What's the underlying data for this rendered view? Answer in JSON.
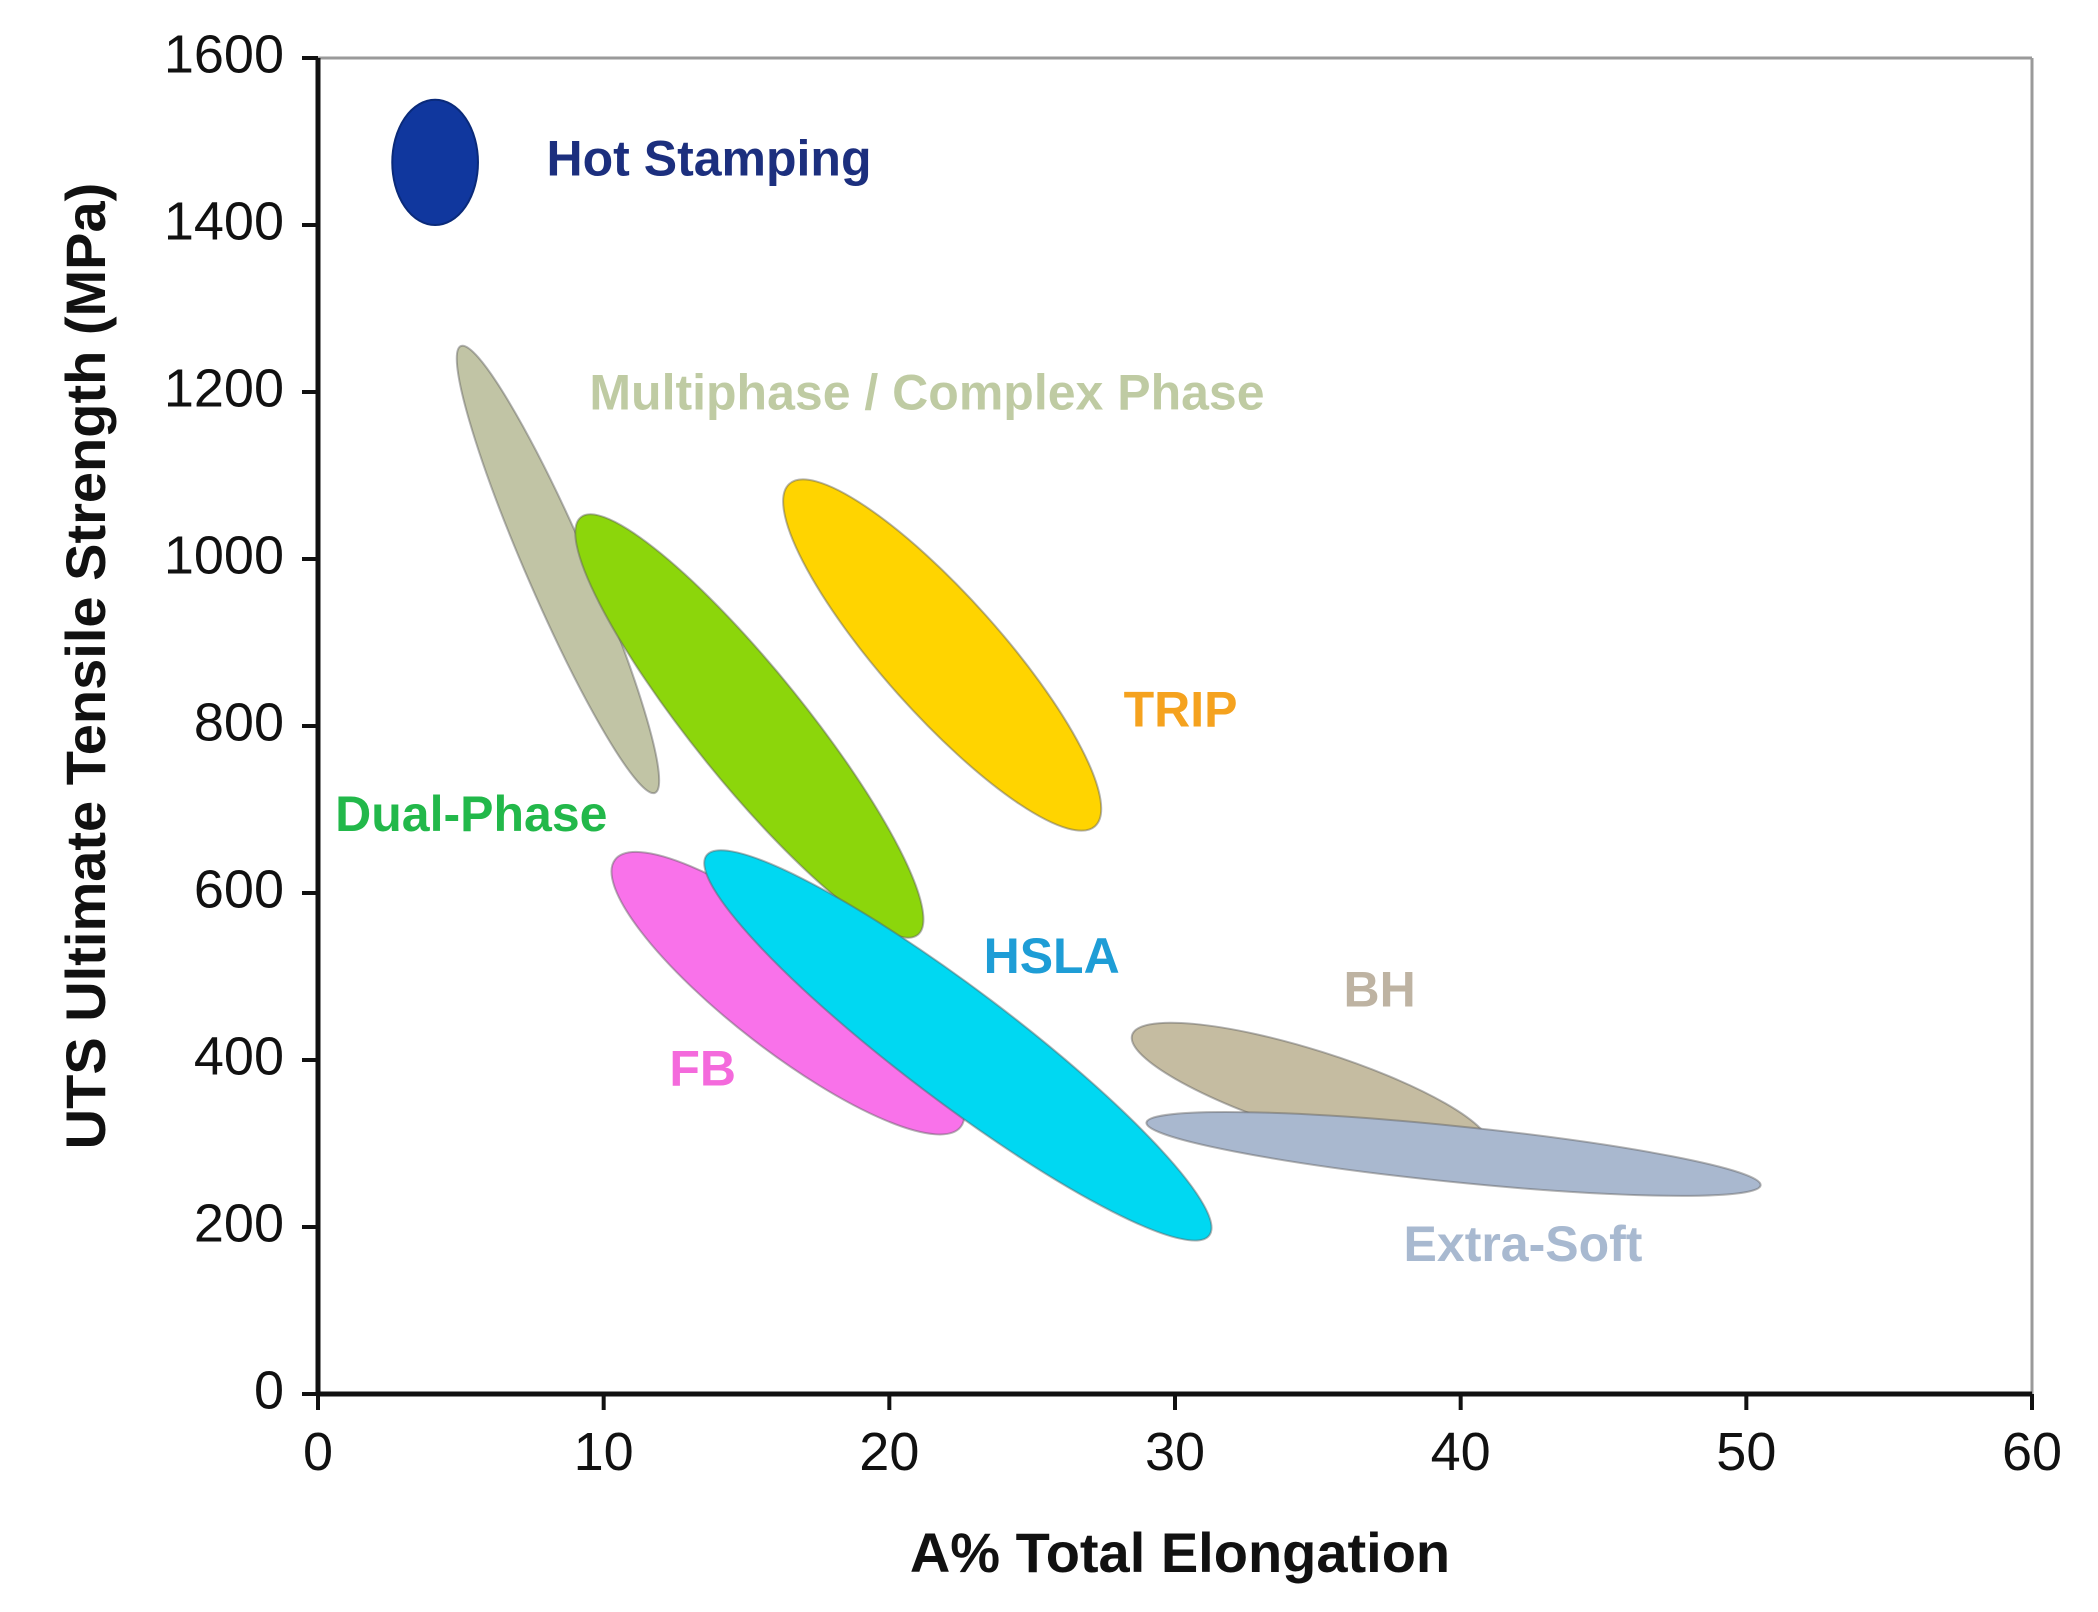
{
  "chart_data": {
    "type": "scatter",
    "subtype": "property-region ellipses",
    "title": "",
    "xlabel": "A% Total Elongation",
    "ylabel": "UTS Ultimate Tensile Strength  (MPa)",
    "xlim": [
      0,
      60
    ],
    "ylim": [
      0,
      1600
    ],
    "xticks": [
      0,
      10,
      20,
      30,
      40,
      50,
      60
    ],
    "yticks": [
      0,
      200,
      400,
      600,
      800,
      1000,
      1200,
      1400,
      1600
    ],
    "grid": false,
    "legend": "none",
    "regions": [
      {
        "name": "Hot Stamping",
        "label": "Hot Stamping",
        "color": "#10379E",
        "text_color": "#1C2F7E",
        "x_range": [
          2.6,
          5.6
        ],
        "y_range": [
          1400,
          1550
        ],
        "x_center": 4.1,
        "y_center": 1475,
        "label_at": {
          "x": 8.0,
          "y": 1475
        }
      },
      {
        "name": "Multiphase / Complex Phase",
        "label": "Multiphase / Complex Phase",
        "color": "#C1C4A5",
        "text_color": "#BFCBA3",
        "end_a": {
          "x": 5.0,
          "y": 1255
        },
        "end_b": {
          "x": 11.8,
          "y": 720
        },
        "label_at": {
          "x": 9.5,
          "y": 1195
        }
      },
      {
        "name": "Dual-Phase",
        "label": "Dual-Phase",
        "color": "#8CD60B",
        "text_color": "#22B84A",
        "end_a": {
          "x": 9.2,
          "y": 1050
        },
        "end_b": {
          "x": 21.0,
          "y": 550
        },
        "label_at": {
          "x": 0.6,
          "y": 690
        }
      },
      {
        "name": "TRIP",
        "label": "TRIP",
        "color": "#FFD400",
        "text_color": "#F5A21E",
        "end_a": {
          "x": 16.5,
          "y": 1090
        },
        "end_b": {
          "x": 27.2,
          "y": 680
        },
        "label_at": {
          "x": 28.2,
          "y": 815
        }
      },
      {
        "name": "FB",
        "label": "FB",
        "color": "#F972EA",
        "text_color": "#F46ADC",
        "end_a": {
          "x": 10.4,
          "y": 640
        },
        "end_b": {
          "x": 22.5,
          "y": 320
        },
        "label_at": {
          "x": 12.3,
          "y": 385
        }
      },
      {
        "name": "HSLA",
        "label": "HSLA",
        "color": "#00D8F2",
        "text_color": "#1E9DD6",
        "end_a": {
          "x": 13.6,
          "y": 645
        },
        "end_b": {
          "x": 31.2,
          "y": 190
        },
        "label_at": {
          "x": 23.3,
          "y": 520
        }
      },
      {
        "name": "BH",
        "label": "BH",
        "color": "#C5BCA1",
        "text_color": "#BEB3A2",
        "end_a": {
          "x": 28.5,
          "y": 430
        },
        "end_b": {
          "x": 41.0,
          "y": 295
        },
        "label_at": {
          "x": 35.9,
          "y": 480
        }
      },
      {
        "name": "Extra-Soft",
        "label": "Extra-Soft",
        "color": "#A9B8CF",
        "text_color": "#A8B9D0",
        "end_a": {
          "x": 29.0,
          "y": 325
        },
        "end_b": {
          "x": 50.5,
          "y": 250
        },
        "label_at": {
          "x": 38.0,
          "y": 175
        }
      }
    ]
  }
}
